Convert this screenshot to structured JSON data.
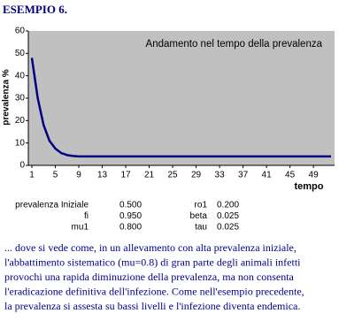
{
  "header": {
    "title": "ESEMPIO 6."
  },
  "chart_data": {
    "type": "line",
    "title": "Andamento nel tempo della prevalenza",
    "y_label": "prevalenza %",
    "x_label": "tempo",
    "x": [
      1,
      2,
      3,
      4,
      5,
      6,
      7,
      8,
      9,
      10,
      52
    ],
    "values": [
      48,
      30,
      18,
      11,
      7.5,
      5.5,
      4.6,
      4.2,
      4.0,
      4.0,
      4.0
    ],
    "color": "#000080",
    "xlim": [
      1,
      52
    ],
    "ylim": [
      0,
      60
    ],
    "xticks": [
      1,
      5,
      9,
      13,
      17,
      21,
      25,
      29,
      33,
      37,
      41,
      45,
      49
    ],
    "yticks": [
      0,
      10,
      20,
      30,
      40,
      50,
      60
    ],
    "grid": false
  },
  "parameters": {
    "rows": [
      [
        "prevalenza Iniziale",
        "0.500",
        "ro1",
        "0.200"
      ],
      [
        "fi",
        "0.950",
        "beta",
        "0.025"
      ],
      [
        "mu1",
        "0.800",
        "tau",
        "0.025"
      ]
    ]
  },
  "text": {
    "lines": [
      "... dove si vede come, in un allevamento con alta prevalenza iniziale,",
      "l'abbattimento sistematico (mu=0.8) di gran parte degli animali infetti",
      "provochi una rapida diminuzione della prevalenza, ma non consenta",
      "l'eradicazione definitiva dell'infezione. Come nell'esempio precedente,",
      "la prevalenza si assesta su bassi livelli e l'infezione diventa endemica."
    ]
  }
}
